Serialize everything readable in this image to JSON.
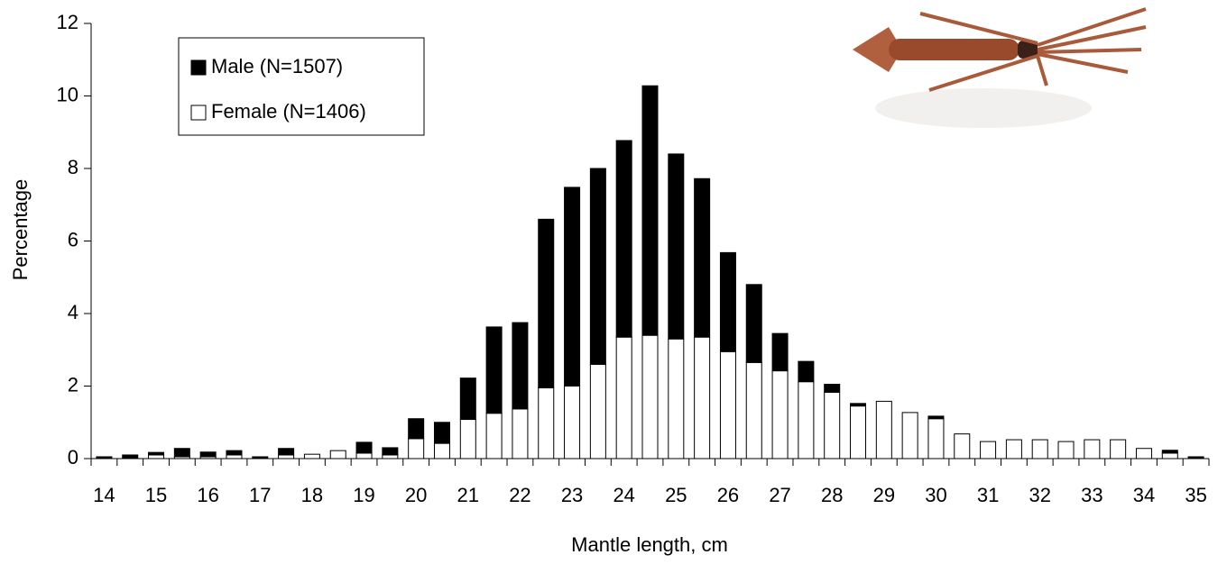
{
  "chart_data": {
    "type": "stacked-bar",
    "x_label": "Mantle length, cm",
    "y_label": "Percentage",
    "categories": [
      "14",
      null,
      "15",
      null,
      "16",
      null,
      "17",
      null,
      "18",
      null,
      "19",
      null,
      "20",
      null,
      "21",
      null,
      "22",
      null,
      "23",
      null,
      "24",
      null,
      "25",
      null,
      "26",
      null,
      "27",
      null,
      "28",
      null,
      "29",
      null,
      "30",
      null,
      "31",
      null,
      "32",
      null,
      "33",
      null,
      "34",
      null,
      "35"
    ],
    "series": [
      {
        "name": "Female (N=1406)",
        "color": "#ffffff",
        "values": [
          0,
          0,
          0.1,
          0.05,
          0.05,
          0.1,
          0,
          0.1,
          0.12,
          0.22,
          0.15,
          0.1,
          0.55,
          0.42,
          1.08,
          1.25,
          1.37,
          1.95,
          2.0,
          2.6,
          3.35,
          3.4,
          3.3,
          3.35,
          2.95,
          2.65,
          2.42,
          2.12,
          1.83,
          1.45,
          1.58,
          1.27,
          1.1,
          0.68,
          0.47,
          0.52,
          0.52,
          0.47,
          0.52,
          0.52,
          0.28,
          0.15,
          0
        ]
      },
      {
        "name": "Male (N=1507)",
        "color": "#000000",
        "values": [
          0.05,
          0.1,
          0.07,
          0.23,
          0.13,
          0.12,
          0.05,
          0.18,
          0,
          0,
          0.3,
          0.2,
          0.55,
          0.58,
          1.14,
          2.38,
          2.38,
          4.65,
          5.48,
          5.4,
          5.42,
          6.88,
          5.1,
          4.37,
          2.73,
          2.15,
          1.03,
          0.56,
          0.22,
          0.07,
          0,
          0,
          0.07,
          0,
          0,
          0,
          0,
          0,
          0,
          0,
          0,
          0.08,
          0.05
        ]
      }
    ],
    "ylim": [
      0,
      12
    ],
    "yticks": [
      0,
      2,
      4,
      6,
      8,
      10,
      12
    ]
  }
}
